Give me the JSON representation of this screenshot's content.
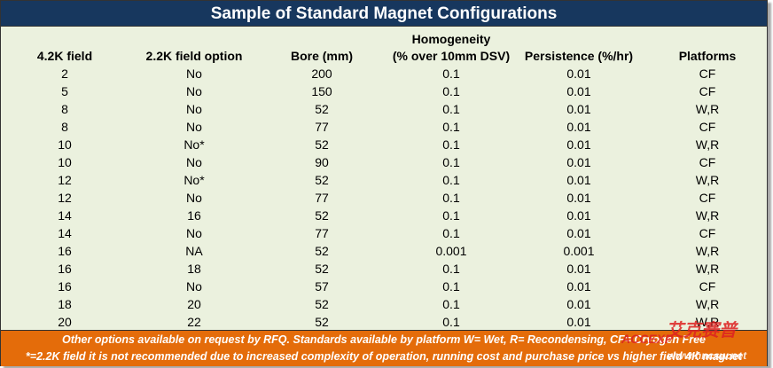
{
  "title": "Sample of Standard Magnet Configurations",
  "table": {
    "headers": [
      [
        "4.2K field"
      ],
      [
        "2.2K field option"
      ],
      [
        "Bore (mm)"
      ],
      [
        "Homogeneity",
        "(% over 10mm DSV)"
      ],
      [
        "Persistence (%/hr)"
      ],
      [
        "Platforms"
      ]
    ],
    "rows": [
      [
        "2",
        "No",
        "200",
        "0.1",
        "0.01",
        "CF"
      ],
      [
        "5",
        "No",
        "150",
        "0.1",
        "0.01",
        "CF"
      ],
      [
        "8",
        "No",
        "52",
        "0.1",
        "0.01",
        "W,R"
      ],
      [
        "8",
        "No",
        "77",
        "0.1",
        "0.01",
        "CF"
      ],
      [
        "10",
        "No*",
        "52",
        "0.1",
        "0.01",
        "W,R"
      ],
      [
        "10",
        "No",
        "90",
        "0.1",
        "0.01",
        "CF"
      ],
      [
        "12",
        "No*",
        "52",
        "0.1",
        "0.01",
        "W,R"
      ],
      [
        "12",
        "No",
        "77",
        "0.1",
        "0.01",
        "CF"
      ],
      [
        "14",
        "16",
        "52",
        "0.1",
        "0.01",
        "W,R"
      ],
      [
        "14",
        "No",
        "77",
        "0.1",
        "0.01",
        "CF"
      ],
      [
        "16",
        "NA",
        "52",
        "0.001",
        "0.001",
        "W,R"
      ],
      [
        "16",
        "18",
        "52",
        "0.1",
        "0.01",
        "W,R"
      ],
      [
        "16",
        "No",
        "57",
        "0.1",
        "0.01",
        "CF"
      ],
      [
        "18",
        "20",
        "52",
        "0.1",
        "0.01",
        "W,R"
      ],
      [
        "20",
        "22",
        "52",
        "0.1",
        "0.01",
        "W,R"
      ]
    ]
  },
  "footer": {
    "line1": "Other options available on request by RFQ. Standards available by platform W= Wet, R= Recondensing, CF= Cryogen Free",
    "line2": "*=2.2K field it is not recommended due to increased complexity of operation, running cost and purchase price vs higher field 4K magnet"
  },
  "watermark": {
    "logo": "ACCEXP",
    "name": "艾克赛普",
    "url": "www.hncsw.net"
  }
}
